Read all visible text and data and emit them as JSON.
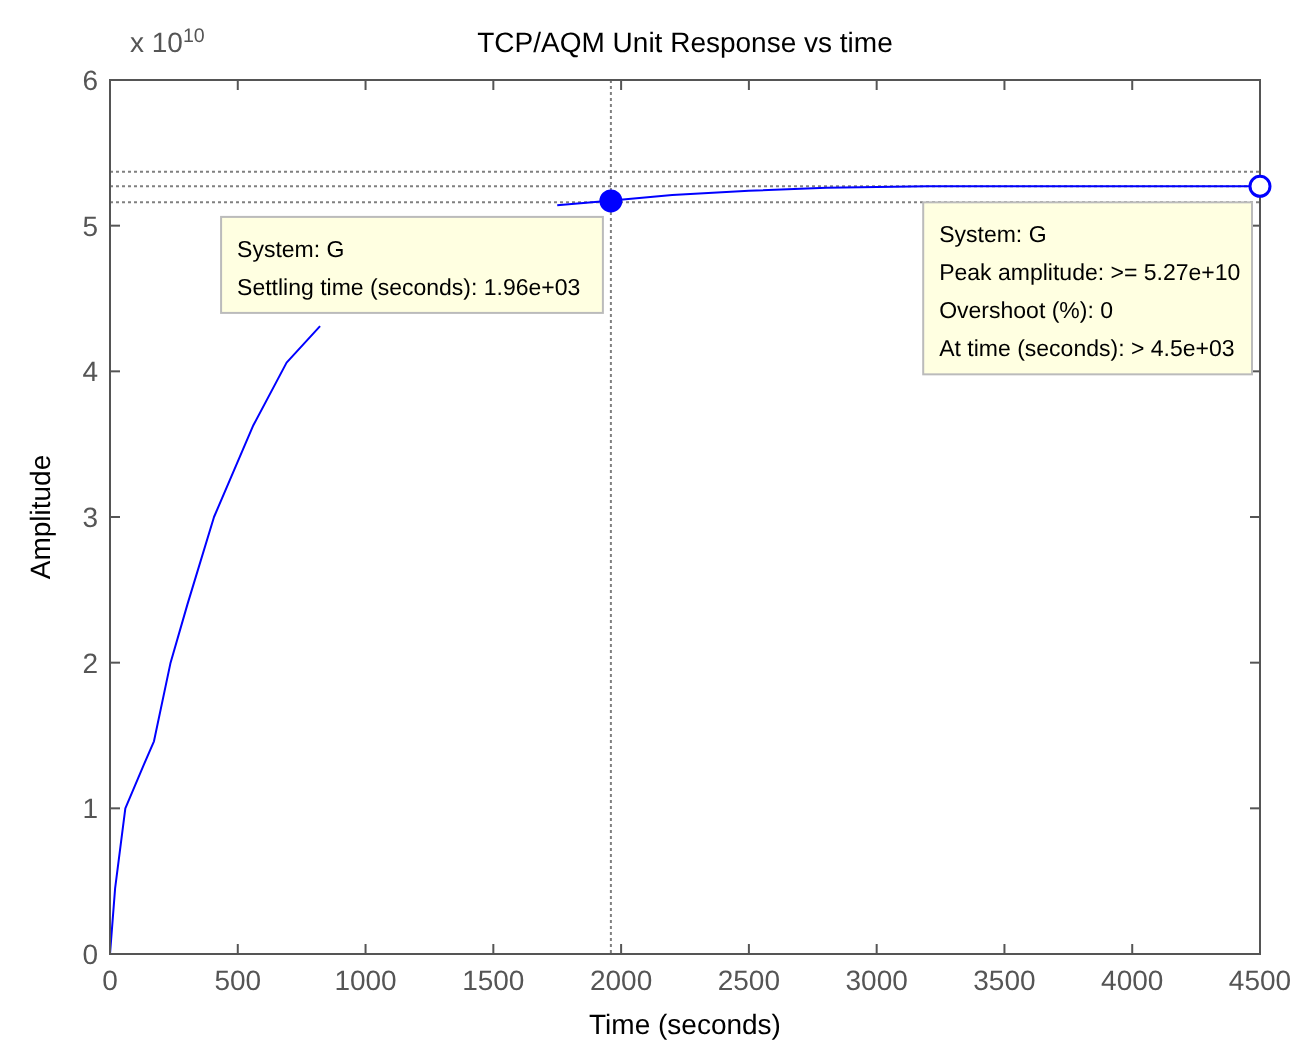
{
  "chart_data": {
    "type": "line",
    "title": "TCP/AQM Unit Response vs time",
    "xlabel": "Time (seconds)",
    "ylabel": "Amplitude",
    "x": [
      0,
      20,
      60,
      130,
      172,
      237,
      303,
      407,
      561,
      691,
      822,
      1000,
      1300,
      1750,
      1943,
      2200,
      2500,
      2803,
      3200,
      3600,
      4000,
      4500
    ],
    "series": [
      {
        "color": "#0000ff",
        "values": [
          0,
          0.45,
          1.0,
          1.29,
          1.46,
          2.0,
          2.4,
          3.0,
          3.63,
          4.06,
          4.31,
          null,
          null,
          5.14,
          5.17,
          5.21,
          5.24,
          5.26,
          5.27,
          5.27,
          5.27,
          5.27
        ]
      }
    ],
    "xlim": [
      0,
      4500
    ],
    "xticks": [
      0,
      500,
      1000,
      1500,
      2000,
      2500,
      3000,
      3500,
      4000,
      4500
    ],
    "ylim": [
      0,
      6
    ],
    "yticks": [
      0,
      1,
      2,
      3,
      4,
      5,
      6
    ],
    "grid": false,
    "marker": "none",
    "line_style": "solid",
    "ref_lines": [
      {
        "axis": "y",
        "value": 5.37,
        "color": "#808080",
        "line_style": "dotted"
      },
      {
        "axis": "y",
        "value": 5.27,
        "color": "#808080",
        "line_style": "dotted"
      },
      {
        "axis": "y",
        "value": 5.16,
        "color": "#808080",
        "line_style": "dotted"
      },
      {
        "axis": "x",
        "value": 1960,
        "color": "#808080",
        "line_style": "dotted"
      }
    ],
    "annotations": [
      "x 10$^{10}$",
      {
        "text": "System: G\nSettling time (seconds): 1.96e+03",
        "x": 1960,
        "y": 5.17
      },
      {
        "text": "System: G\nPeak amplitude: >= 5.27e+10\nOvershoot (%): 0\nAt time (seconds): > 4.5e+03",
        "x": 4500,
        "y": 5.27
      }
    ]
  }
}
